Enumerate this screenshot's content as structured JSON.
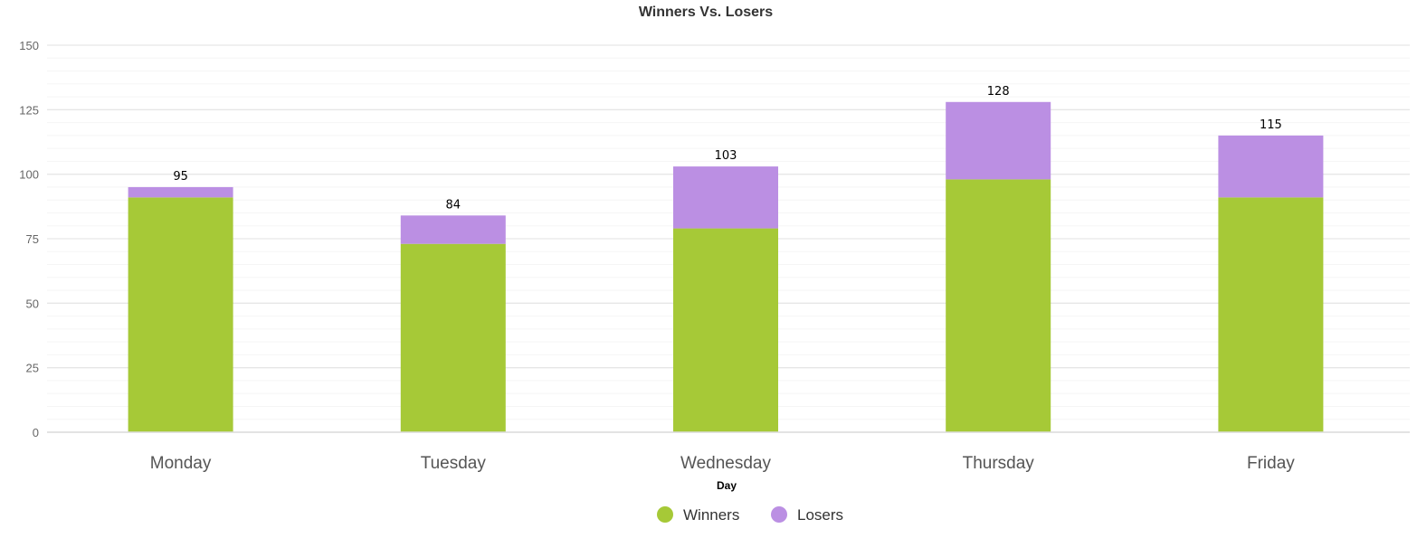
{
  "chart_data": {
    "type": "bar",
    "stacked": true,
    "title": "Winners Vs. Losers",
    "xlabel": "Day",
    "ylabel": "",
    "categories": [
      "Monday",
      "Tuesday",
      "Wednesday",
      "Thursday",
      "Friday"
    ],
    "series": [
      {
        "name": "Winners",
        "color": "#a6c937",
        "values": [
          91,
          73,
          79,
          98,
          91
        ]
      },
      {
        "name": "Losers",
        "color": "#bb8fe3",
        "values": [
          4,
          11,
          24,
          30,
          24
        ]
      }
    ],
    "totals": [
      "95",
      "84",
      "103",
      "128",
      "115"
    ],
    "ylim": [
      0,
      150
    ],
    "yticks": [
      "0",
      "25",
      "50",
      "75",
      "100",
      "125",
      "150"
    ],
    "grid": true,
    "legend": "bottom-center"
  }
}
